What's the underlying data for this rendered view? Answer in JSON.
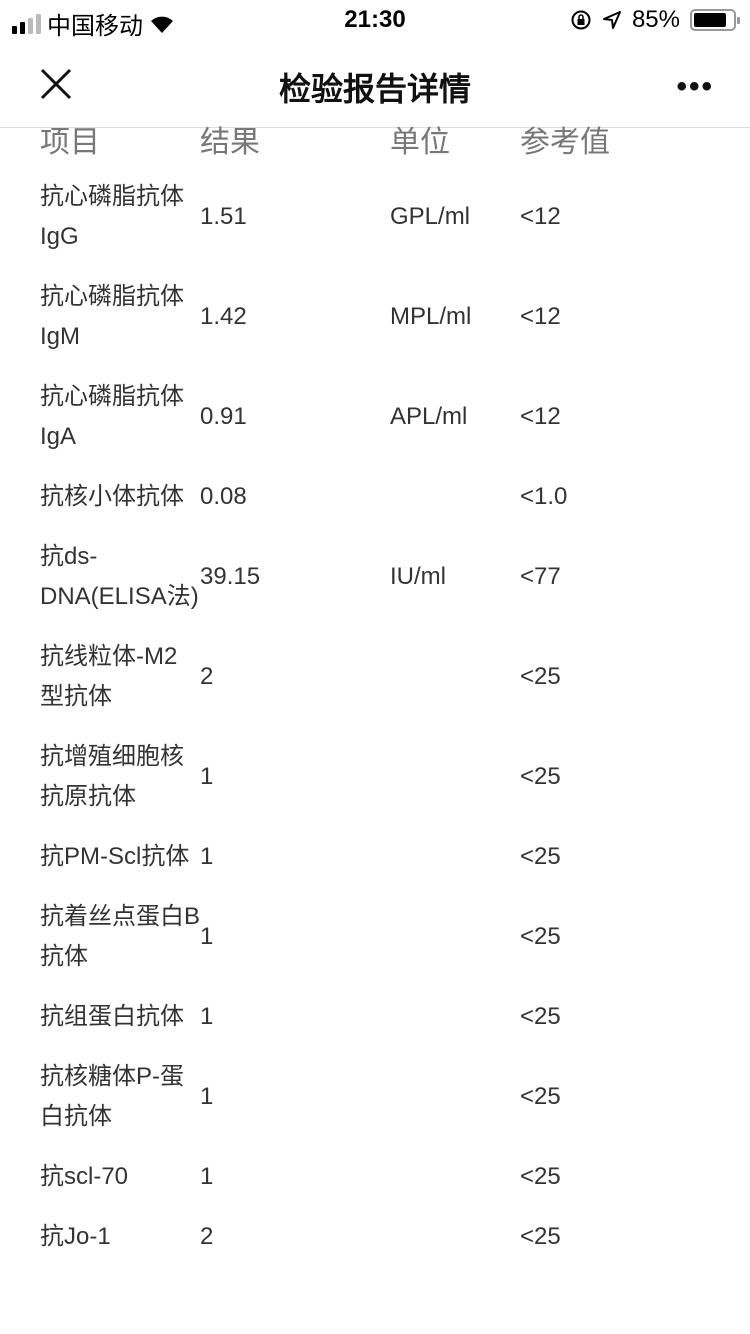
{
  "status_bar": {
    "carrier": "中国移动",
    "time": "21:30",
    "battery": "85%",
    "battery_level": 0.85,
    "icons": [
      "signal-icon",
      "wifi-icon",
      "orientation-lock-icon",
      "location-icon",
      "battery-icon"
    ]
  },
  "nav": {
    "title": "检验报告详情",
    "close_icon": "close-icon",
    "more_icon": "more-icon"
  },
  "table": {
    "headers": [
      "项目",
      "结果",
      "单位",
      "参考值"
    ],
    "rows": [
      {
        "item": "抗心磷脂抗体IgG",
        "result": "1.51",
        "unit": "GPL/ml",
        "ref": "<12"
      },
      {
        "item": "抗心磷脂抗体IgM",
        "result": "1.42",
        "unit": "MPL/ml",
        "ref": "<12"
      },
      {
        "item": "抗心磷脂抗体IgA",
        "result": "0.91",
        "unit": "APL/ml",
        "ref": "<12"
      },
      {
        "item": "抗核小体抗体",
        "result": "0.08",
        "unit": "",
        "ref": "<1.0"
      },
      {
        "item": "抗ds-DNA(ELISA法)",
        "result": "39.15",
        "unit": "IU/ml",
        "ref": "<77"
      },
      {
        "item": "抗线粒体-M2型抗体",
        "result": "2",
        "unit": "",
        "ref": "<25"
      },
      {
        "item": "抗增殖细胞核抗原抗体",
        "result": "1",
        "unit": "",
        "ref": "<25"
      },
      {
        "item": "抗PM-Scl抗体",
        "result": "1",
        "unit": "",
        "ref": "<25"
      },
      {
        "item": "抗着丝点蛋白B抗体",
        "result": "1",
        "unit": "",
        "ref": "<25"
      },
      {
        "item": "抗组蛋白抗体",
        "result": "1",
        "unit": "",
        "ref": "<25"
      },
      {
        "item": "抗核糖体P-蛋白抗体",
        "result": "1",
        "unit": "",
        "ref": "<25"
      },
      {
        "item": "抗scl-70",
        "result": "1",
        "unit": "",
        "ref": "<25"
      },
      {
        "item": "抗Jo-1",
        "result": "2",
        "unit": "",
        "ref": "<25"
      }
    ]
  }
}
